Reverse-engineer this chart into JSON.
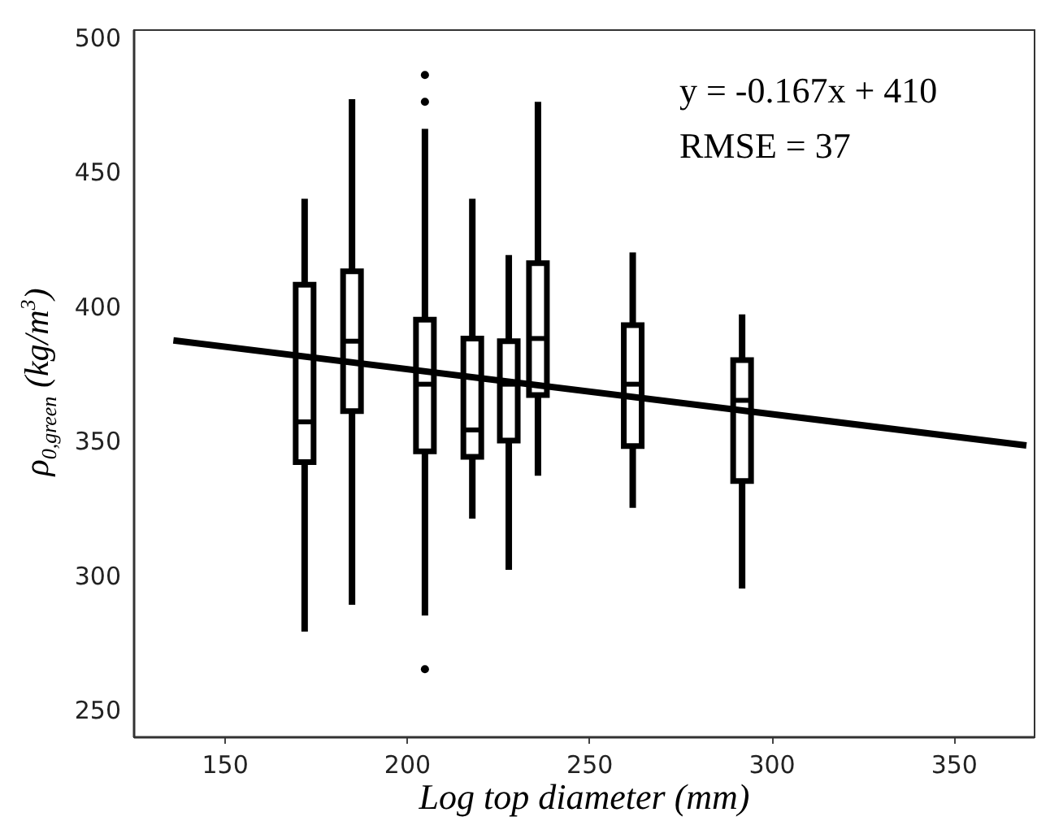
{
  "chart_data": {
    "type": "box",
    "xlabel": "Log top diameter (mm)",
    "ylabel": "ρ$_{0,green}$ (kg/m$^{3}$)",
    "annotations": [
      "y = -0.167x + 410",
      "RMSE = 37"
    ],
    "x": [
      172,
      185,
      205,
      218,
      228,
      236,
      262,
      292
    ],
    "boxes": [
      {
        "low": 279,
        "q1": 342,
        "median": 357,
        "q3": 408,
        "high": 440
      },
      {
        "low": 289,
        "q1": 361,
        "median": 387,
        "q3": 413,
        "high": 477
      },
      {
        "low": 285,
        "q1": 346,
        "median": 371,
        "q3": 395,
        "high": 466,
        "outliers": [
          486,
          476,
          265
        ]
      },
      {
        "low": 321,
        "q1": 344,
        "median": 354,
        "q3": 388,
        "high": 440
      },
      {
        "low": 302,
        "q1": 350,
        "median": 371,
        "q3": 387,
        "high": 419
      },
      {
        "low": 337,
        "q1": 367,
        "median": 388,
        "q3": 416,
        "high": 476
      },
      {
        "low": 325,
        "q1": 348,
        "median": 371,
        "q3": 393,
        "high": 420
      },
      {
        "low": 295,
        "q1": 335,
        "median": 365,
        "q3": 380,
        "high": 397
      }
    ],
    "series": [
      {
        "type": "line",
        "color": "#000000",
        "x": [
          136,
          370
        ],
        "values": [
          387.3,
          348.2
        ]
      }
    ],
    "xlim": [
      125,
      372
    ],
    "ylim": [
      240,
      503
    ],
    "xticks": [
      150,
      200,
      250,
      300,
      350
    ],
    "yticks": [
      250,
      300,
      350,
      400,
      450,
      500
    ],
    "grid": false
  }
}
